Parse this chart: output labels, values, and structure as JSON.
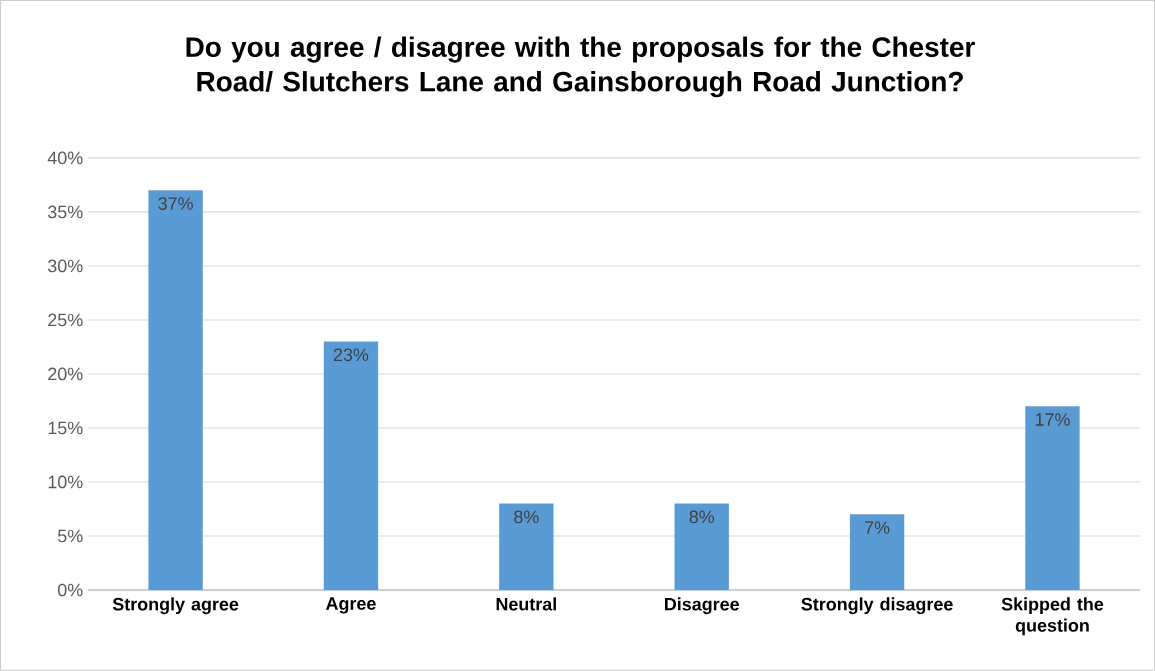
{
  "chart_data": {
    "type": "bar",
    "title": "Do you agree / disagree with the proposals for the Chester Road/ Slutchers Lane and Gainsborough Road Junction?",
    "categories": [
      "Strongly agree",
      "Agree",
      "Neutral",
      "Disagree",
      "Strongly disagree",
      "Skipped the question"
    ],
    "values": [
      37,
      23,
      8,
      8,
      7,
      17
    ],
    "value_labels": [
      "37%",
      "23%",
      "8%",
      "8%",
      "7%",
      "17%"
    ],
    "color": "#5b9bd5",
    "ylim": [
      0,
      40
    ],
    "yticks": [
      {
        "value": 0,
        "label": "0%"
      },
      {
        "value": 5,
        "label": "5%"
      },
      {
        "value": 10,
        "label": "10%"
      },
      {
        "value": 15,
        "label": "15%"
      },
      {
        "value": 20,
        "label": "20%"
      },
      {
        "value": 25,
        "label": "25%"
      },
      {
        "value": 30,
        "label": "30%"
      },
      {
        "value": 35,
        "label": "35%"
      },
      {
        "value": 40,
        "label": "40%"
      }
    ],
    "grid": true
  }
}
